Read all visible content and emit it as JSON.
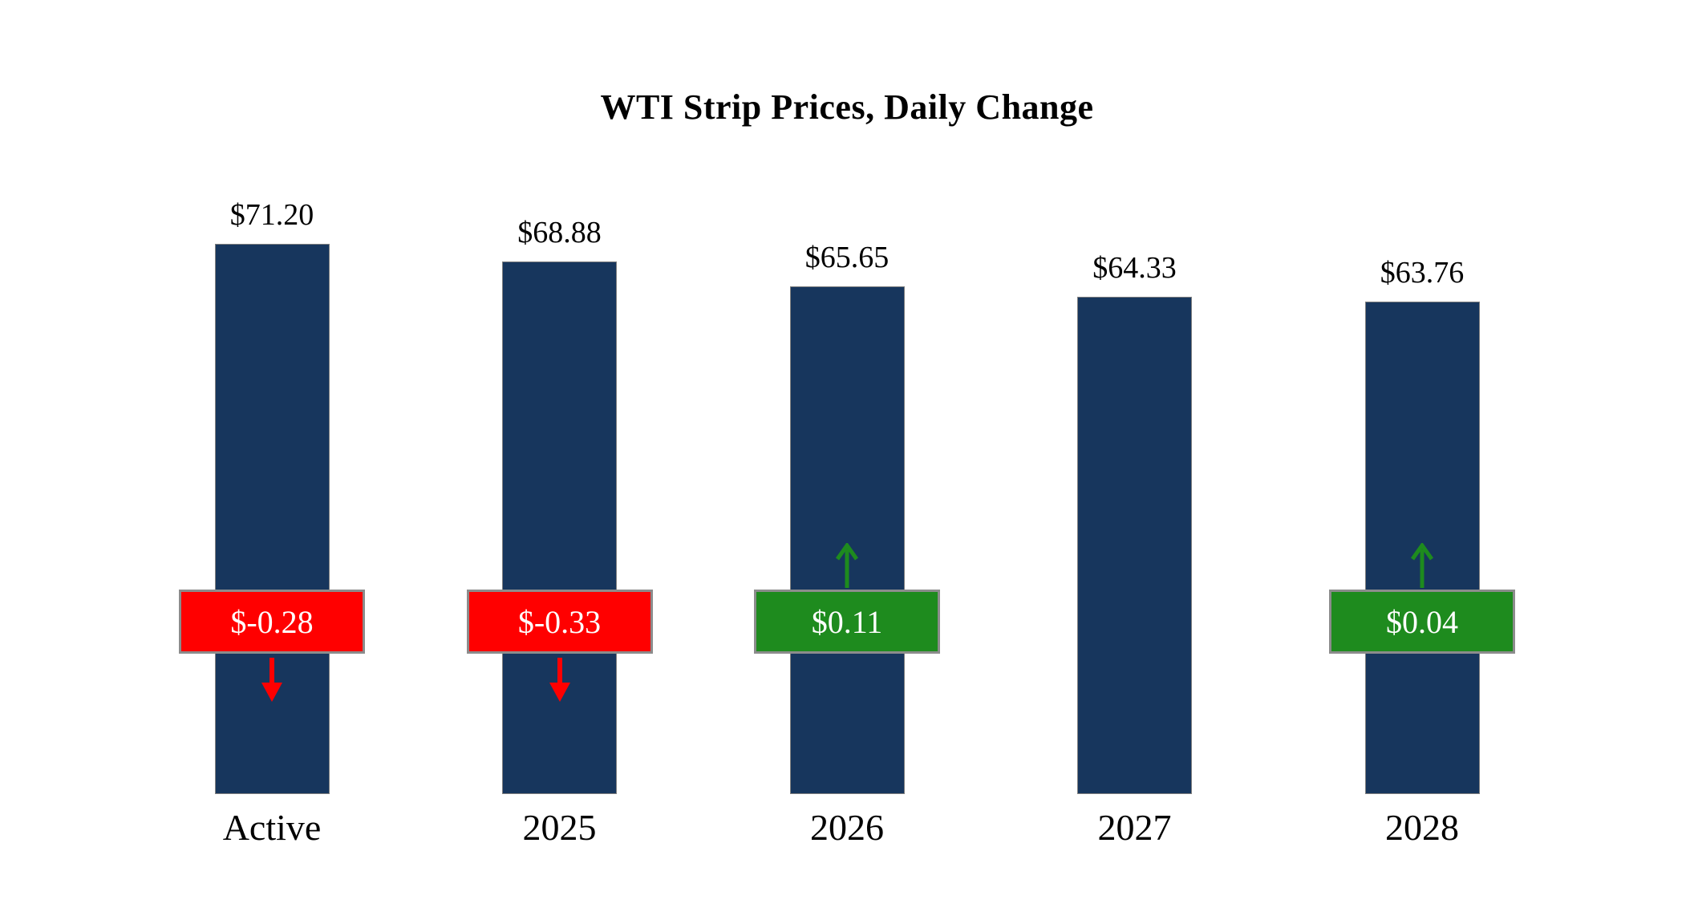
{
  "chart": {
    "title": "WTI Strip Prices, Daily Change"
  },
  "chart_data": {
    "type": "bar",
    "title": "WTI Strip Prices, Daily Change",
    "categories": [
      "Active",
      "2025",
      "2026",
      "2027",
      "2028"
    ],
    "series": [
      {
        "name": "WTI Strip Price",
        "values": [
          71.2,
          68.88,
          65.65,
          64.33,
          63.76
        ]
      }
    ],
    "value_labels": [
      "$71.20",
      "$68.88",
      "$65.65",
      "$64.33",
      "$63.76"
    ],
    "changes": [
      -0.28,
      -0.33,
      0.11,
      null,
      0.04
    ],
    "change_labels": [
      "$-0.28",
      "$-0.33",
      "$0.11",
      null,
      "$0.04"
    ],
    "bar_color": "#17365d",
    "negative_color": "#ff0000",
    "positive_color": "#1e8b1e",
    "badge_border_color": "#8c8c8c",
    "xlabel": "",
    "ylabel": "",
    "ylim": [
      0,
      75
    ],
    "grid": false,
    "legend": false,
    "axes_visible": false
  }
}
